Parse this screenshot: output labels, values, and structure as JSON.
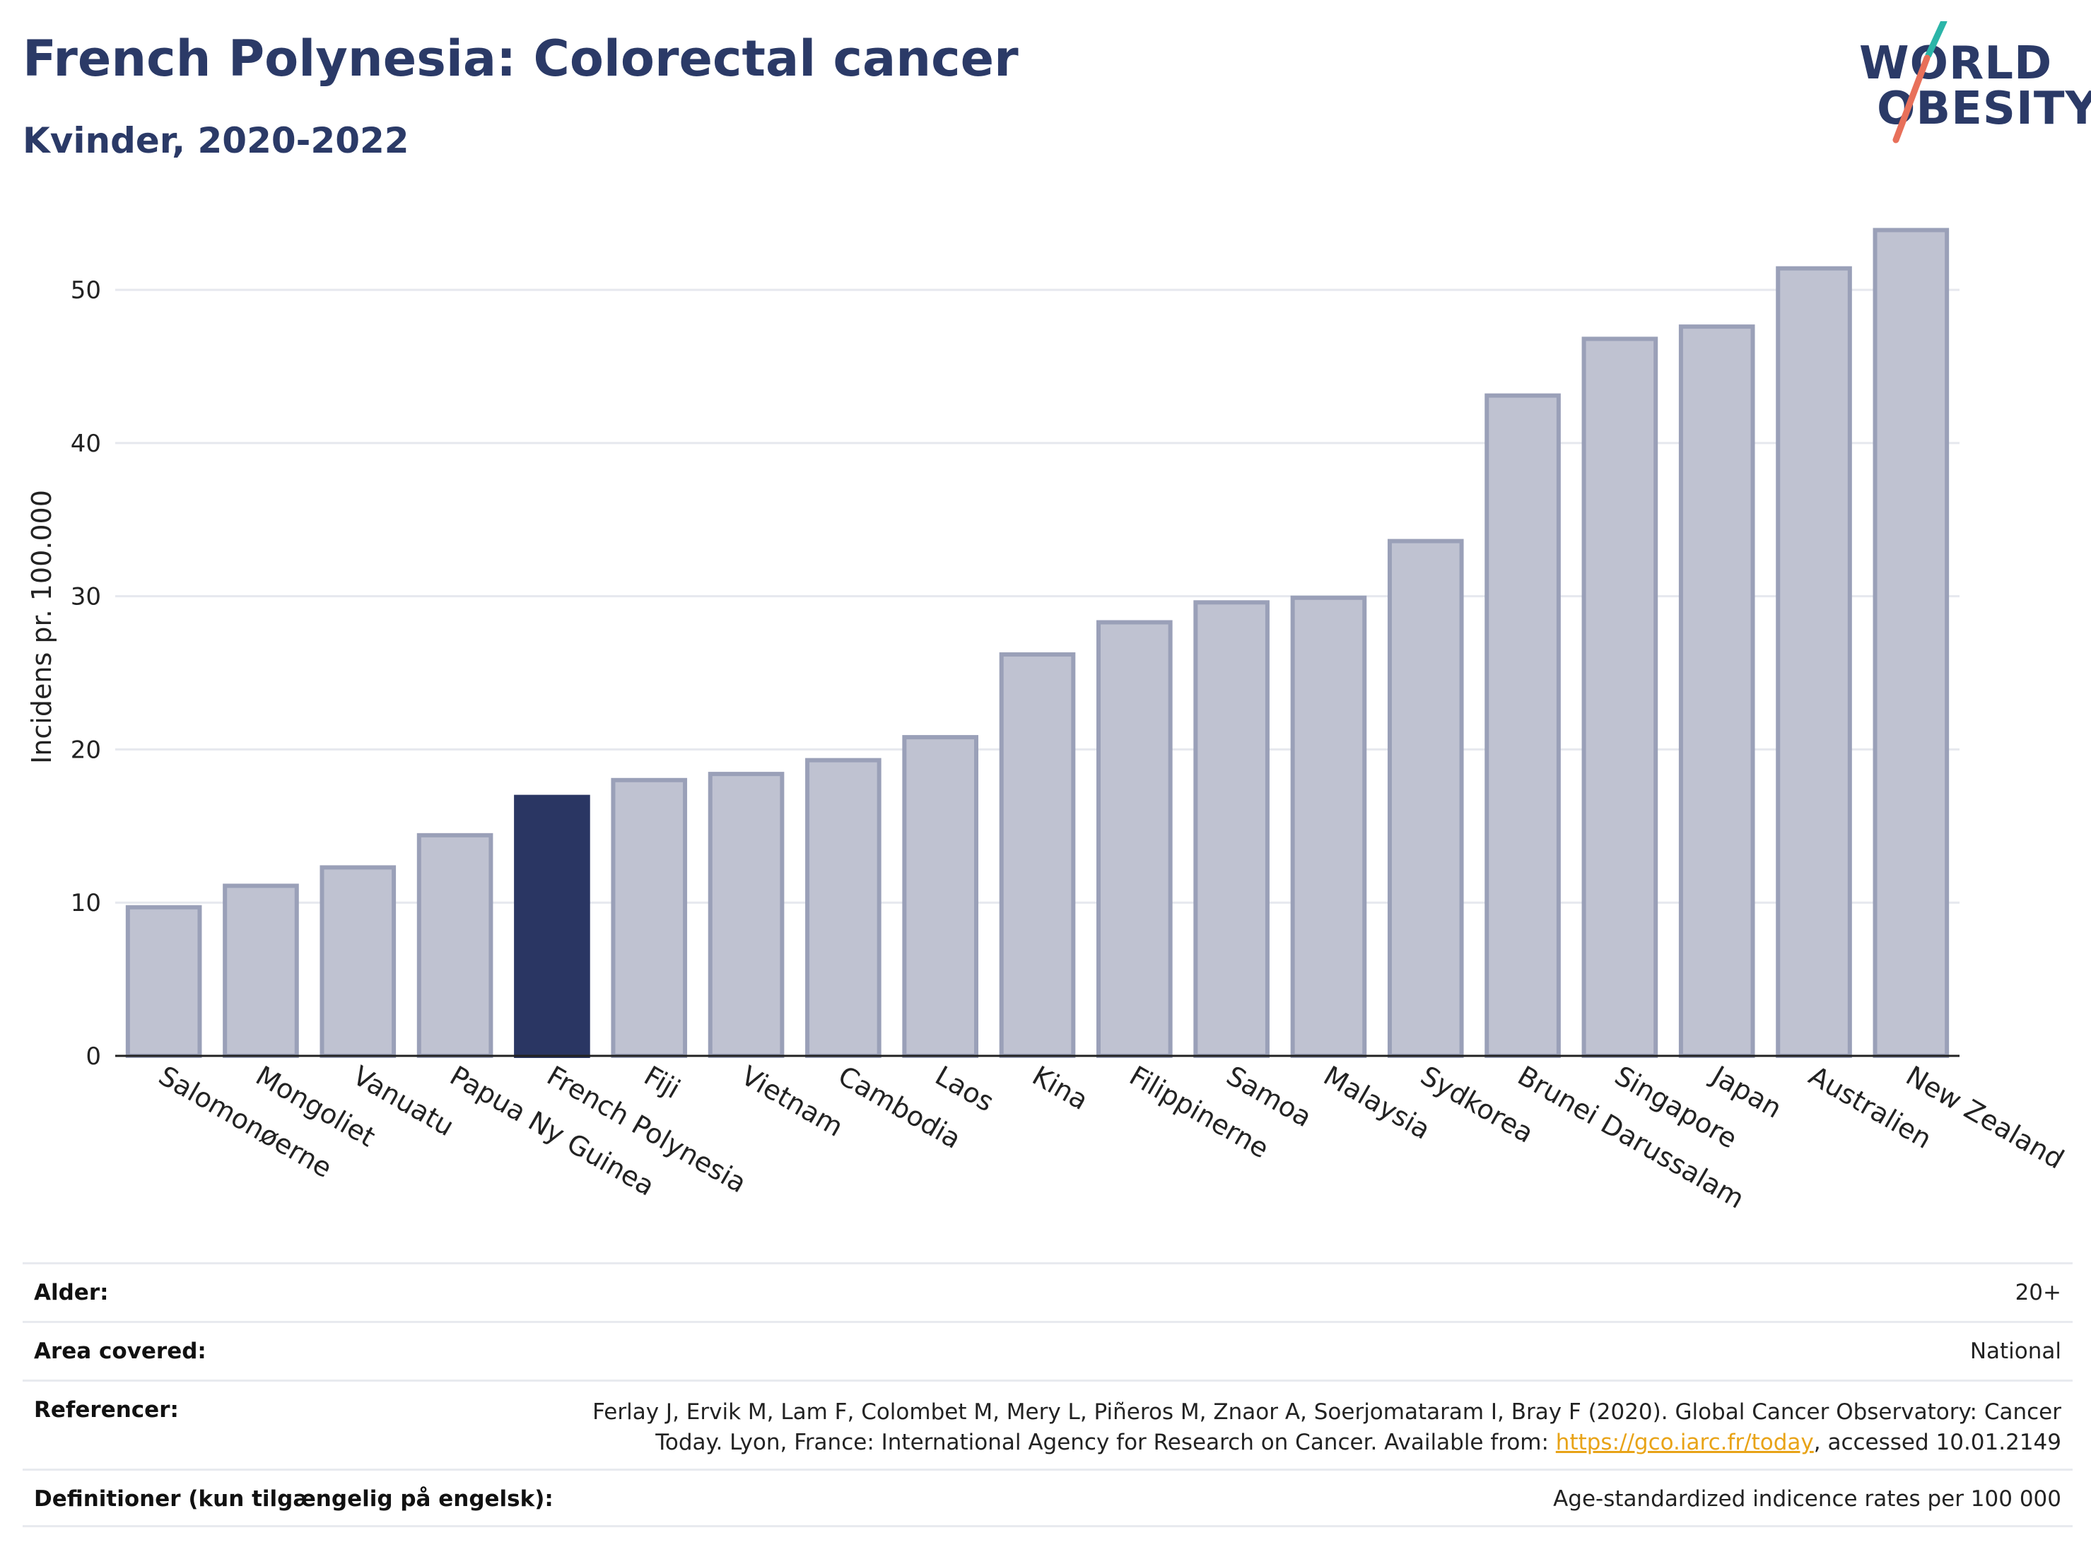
{
  "header": {
    "title": "French Polynesia: Colorectal cancer",
    "subtitle": "Kvinder, 2020-2022"
  },
  "logo": {
    "line1": "WORLD",
    "line2": "OBESITY",
    "colors": {
      "text": "#2b3a67",
      "slash_top": "#2bb5a8",
      "slash_bottom": "#e8705a"
    }
  },
  "chart_data": {
    "type": "bar",
    "ylabel": "Incidens pr. 100.000",
    "xlabel": "",
    "ylim": [
      0,
      56
    ],
    "yticks": [
      0,
      10,
      20,
      30,
      40,
      50
    ],
    "grid": true,
    "highlight_category": "French Polynesia",
    "colors": {
      "bar": "#bfc2d1",
      "bar_stroke": "#9aa0b8",
      "highlight": "#2a3663"
    },
    "categories": [
      "Salomonøerne",
      "Mongoliet",
      "Vanuatu",
      "Papua Ny Guinea",
      "French Polynesia",
      "Fiji",
      "Vietnam",
      "Cambodia",
      "Laos",
      "Kina",
      "Filippinerne",
      "Samoa",
      "Malaysia",
      "Sydkorea",
      "Brunei Darussalam",
      "Singapore",
      "Japan",
      "Australien",
      "New Zealand"
    ],
    "values": [
      9.7,
      11.1,
      12.3,
      14.4,
      16.9,
      18.0,
      18.4,
      19.3,
      20.8,
      26.2,
      28.3,
      29.6,
      29.9,
      33.6,
      43.1,
      46.8,
      47.6,
      51.4,
      53.9
    ]
  },
  "meta": {
    "rows": [
      {
        "label": "Alder:",
        "value": "20+"
      },
      {
        "label": "Area covered:",
        "value": "National"
      },
      {
        "label": "Referencer:",
        "value_line1": "Ferlay J, Ervik M, Lam F, Colombet M, Mery L, Piñeros M, Znaor A, Soerjomataram I, Bray F (2020). Global Cancer Observatory: Cancer",
        "value_line2_pre": "Today. Lyon, France: International Agency for Research on Cancer. Available from: ",
        "link": "https://gco.iarc.fr/today",
        "value_line2_post": ", accessed 10.01.2149"
      },
      {
        "label": "Definitioner (kun tilgængelig på engelsk):",
        "value": "Age-standardized indicence rates per 100 000"
      }
    ]
  }
}
